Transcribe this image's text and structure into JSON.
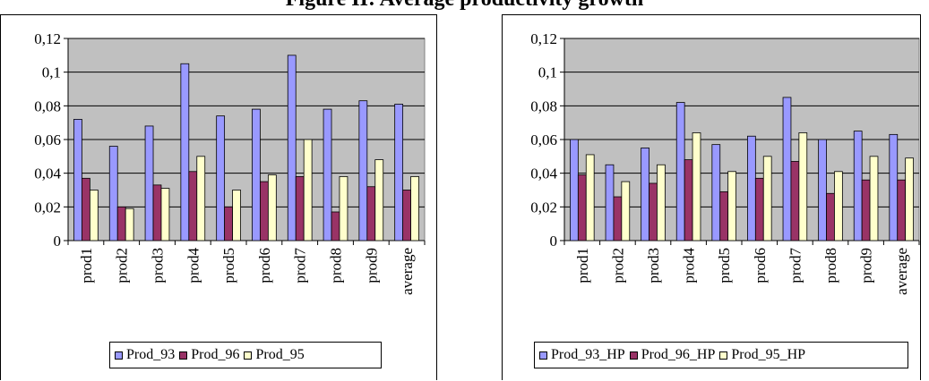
{
  "title": "Figure II: Average productivity growth",
  "colors": {
    "series1": "#9999FF",
    "series2": "#993366",
    "series3": "#FFFFCC",
    "plot_bg": "#C0C0C0"
  },
  "chart_data": [
    {
      "type": "bar",
      "categories": [
        "prod1",
        "prod2",
        "prod3",
        "prod4",
        "prod5",
        "prod6",
        "prod7",
        "prod8",
        "prod9",
        "average"
      ],
      "y_ticks": [
        "0",
        "0,02",
        "0,04",
        "0,06",
        "0,08",
        "0,1",
        "0,12"
      ],
      "ylim": [
        0,
        0.12
      ],
      "grid": true,
      "legend_position": "bottom",
      "series": [
        {
          "name": "Prod_93",
          "values": [
            0.072,
            0.056,
            0.068,
            0.105,
            0.074,
            0.078,
            0.11,
            0.078,
            0.083,
            0.081
          ]
        },
        {
          "name": "Prod_96",
          "values": [
            0.037,
            0.02,
            0.033,
            0.041,
            0.02,
            0.035,
            0.038,
            0.017,
            0.032,
            0.03
          ]
        },
        {
          "name": "Prod_95",
          "values": [
            0.03,
            0.019,
            0.031,
            0.05,
            0.03,
            0.039,
            0.06,
            0.038,
            0.048,
            0.038
          ]
        }
      ]
    },
    {
      "type": "bar",
      "categories": [
        "prod1",
        "prod2",
        "prod3",
        "prod4",
        "prod5",
        "prod6",
        "prod7",
        "prod8",
        "prod9",
        "average"
      ],
      "y_ticks": [
        "0",
        "0,02",
        "0,04",
        "0,06",
        "0,08",
        "0,1",
        "0,12"
      ],
      "ylim": [
        0,
        0.12
      ],
      "grid": true,
      "legend_position": "bottom",
      "series": [
        {
          "name": "Prod_93_HP",
          "values": [
            0.06,
            0.045,
            0.055,
            0.082,
            0.057,
            0.062,
            0.085,
            0.06,
            0.065,
            0.063
          ]
        },
        {
          "name": "Prod_96_HP",
          "values": [
            0.039,
            0.026,
            0.034,
            0.048,
            0.029,
            0.037,
            0.047,
            0.028,
            0.036,
            0.036
          ]
        },
        {
          "name": "Prod_95_HP",
          "values": [
            0.051,
            0.035,
            0.045,
            0.064,
            0.041,
            0.05,
            0.064,
            0.041,
            0.05,
            0.049
          ]
        }
      ]
    }
  ]
}
